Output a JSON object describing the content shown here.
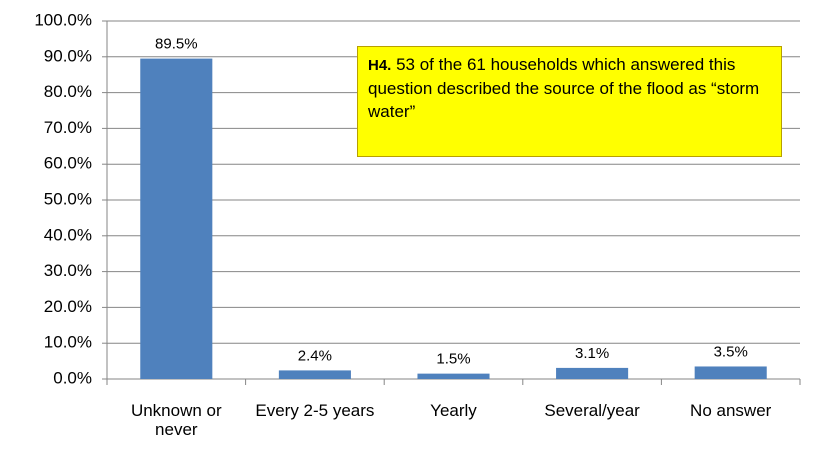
{
  "chart_data": {
    "type": "bar",
    "categories": [
      "Unknown or never",
      "Every 2-5 years",
      "Yearly",
      "Several/year",
      "No answer"
    ],
    "values": [
      89.5,
      2.4,
      1.5,
      3.1,
      3.5
    ],
    "value_labels": [
      "89.5%",
      "2.4%",
      "1.5%",
      "3.1%",
      "3.5%"
    ],
    "color": "#4f81bd",
    "ylim": [
      0,
      100
    ],
    "yticks": [
      {
        "value": 0,
        "label": "0.0%"
      },
      {
        "value": 10,
        "label": "10.0%"
      },
      {
        "value": 20,
        "label": "20.0%"
      },
      {
        "value": 30,
        "label": "30.0%"
      },
      {
        "value": 40,
        "label": "40.0%"
      },
      {
        "value": 50,
        "label": "50.0%"
      },
      {
        "value": 60,
        "label": "60.0%"
      },
      {
        "value": 70,
        "label": "70.0%"
      },
      {
        "value": 80,
        "label": "80.0%"
      },
      {
        "value": 90,
        "label": "90.0%"
      },
      {
        "value": 100,
        "label": "100.0%"
      }
    ],
    "grid": true,
    "annotation": {
      "label": "H4.",
      "text": "53 of the 61 households which answered this question described the source of the flood as “storm water”"
    }
  }
}
